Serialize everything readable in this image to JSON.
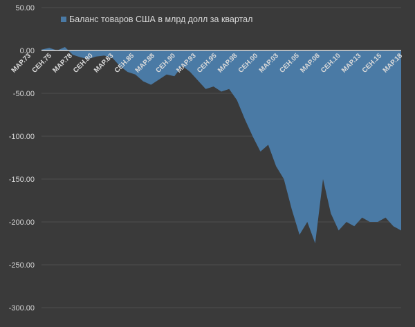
{
  "colors": {
    "background": "#3a3a3a",
    "area_fill": "#4a7aa5",
    "gridline": "#4d4d4d",
    "zero_line": "#d9d9d9",
    "text": "#d9d9d9"
  },
  "chart_data": {
    "type": "area",
    "title": "",
    "xlabel": "",
    "ylabel": "",
    "ylim": [
      -300,
      50
    ],
    "y_ticks": [
      50,
      0,
      -50,
      -100,
      -150,
      -200,
      -250,
      -300
    ],
    "y_tick_labels": [
      "50.00",
      "0.00",
      "-50.00",
      "-100.00",
      "-150.00",
      "-200.00",
      "-250.00",
      "-300.00"
    ],
    "x_tick_labels": [
      "MAP.73",
      "CEH.75",
      "MAP.78",
      "CEH.80",
      "MAP.83",
      "CEH.85",
      "MAP.88",
      "CEH.90",
      "MAP.93",
      "CEH.95",
      "MAP.98",
      "CEH.00",
      "MAP.03",
      "CEH.05",
      "MAP.08",
      "CEH.10",
      "MAP.13",
      "CEH.15",
      "MAP.18"
    ],
    "grid": true,
    "legend_position": "top-left",
    "series": [
      {
        "name": "Баланс товаров США в млрд долл за квартал",
        "x": [
          "1973",
          "1974",
          "1975",
          "1976",
          "1977",
          "1978",
          "1979",
          "1980",
          "1981",
          "1982",
          "1983",
          "1984",
          "1985",
          "1986",
          "1987",
          "1988",
          "1989",
          "1990",
          "1991",
          "1992",
          "1993",
          "1994",
          "1995",
          "1996",
          "1997",
          "1998",
          "1999",
          "2000",
          "2001",
          "2002",
          "2003",
          "2004",
          "2005",
          "2006",
          "2007",
          "2008",
          "2009",
          "2010",
          "2011",
          "2012",
          "2013",
          "2014",
          "2015",
          "2016",
          "2017",
          "2018",
          "2018Q4"
        ],
        "values": [
          1,
          3,
          0,
          4,
          -5,
          -8,
          -10,
          -7,
          -6,
          -8,
          -18,
          -25,
          -28,
          -36,
          -40,
          -34,
          -28,
          -30,
          -18,
          -25,
          -35,
          -45,
          -42,
          -48,
          -45,
          -58,
          -80,
          -100,
          -118,
          -110,
          -135,
          -150,
          -185,
          -215,
          -200,
          -225,
          -150,
          -190,
          -210,
          -200,
          -205,
          -195,
          -200,
          -200,
          -195,
          -205,
          -210
        ]
      }
    ]
  }
}
